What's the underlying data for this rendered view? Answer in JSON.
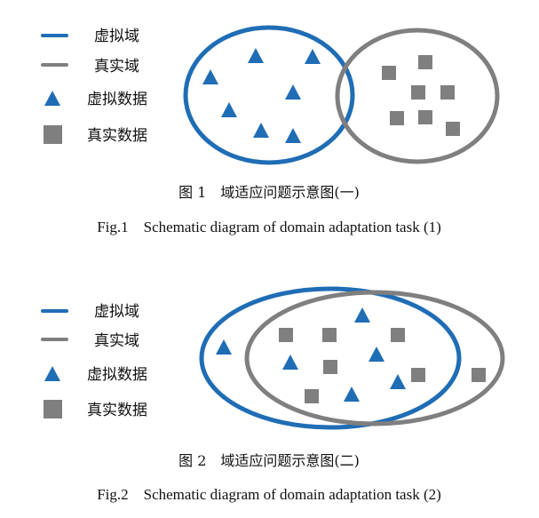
{
  "legend": {
    "virtual_domain": "虚拟域",
    "real_domain": "真实域",
    "virtual_data": "虚拟数据",
    "real_data": "真实数据"
  },
  "figure1": {
    "caption_cn": "图 1　域适应问题示意图(一)",
    "caption_en": "Fig.1　Schematic diagram of domain adaptation task (1)"
  },
  "figure2": {
    "caption_cn": "图 2　域适应问题示意图(二)",
    "caption_en": "Fig.2　Schematic diagram of domain adaptation task (2)"
  },
  "colors": {
    "virtual": "#1f6db5",
    "real": "#7f7f7f"
  }
}
